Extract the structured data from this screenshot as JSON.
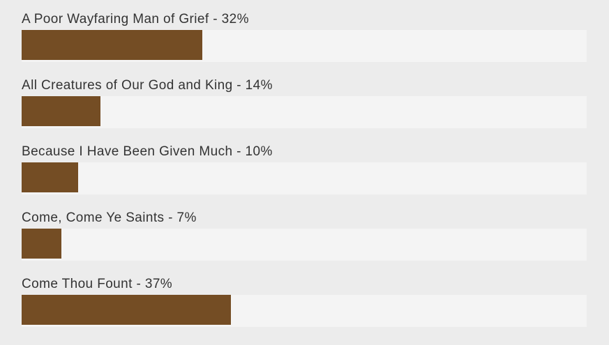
{
  "page": {
    "background_color": "#ececec"
  },
  "chart_data": {
    "type": "bar",
    "orientation": "horizontal",
    "title": "",
    "categories": [
      "A Poor Wayfaring Man of Grief",
      "All Creatures of Our God and King",
      "Because I Have Been Given Much",
      "Come, Come Ye Saints",
      "Come Thou Fount"
    ],
    "values": [
      32,
      14,
      10,
      7,
      37
    ],
    "unit": "%",
    "labels": [
      "A Poor Wayfaring Man of Grief - 32%",
      "All Creatures of Our God and King - 14%",
      "Because I Have Been Given Much - 10%",
      "Come, Come Ye Saints - 7%",
      "Come Thou Fount - 37%"
    ],
    "xlim": [
      0,
      100
    ],
    "grid": false,
    "legend": false,
    "bar_color": "#744d24",
    "track_color": "#f4f4f4",
    "label_color": "#333333"
  }
}
